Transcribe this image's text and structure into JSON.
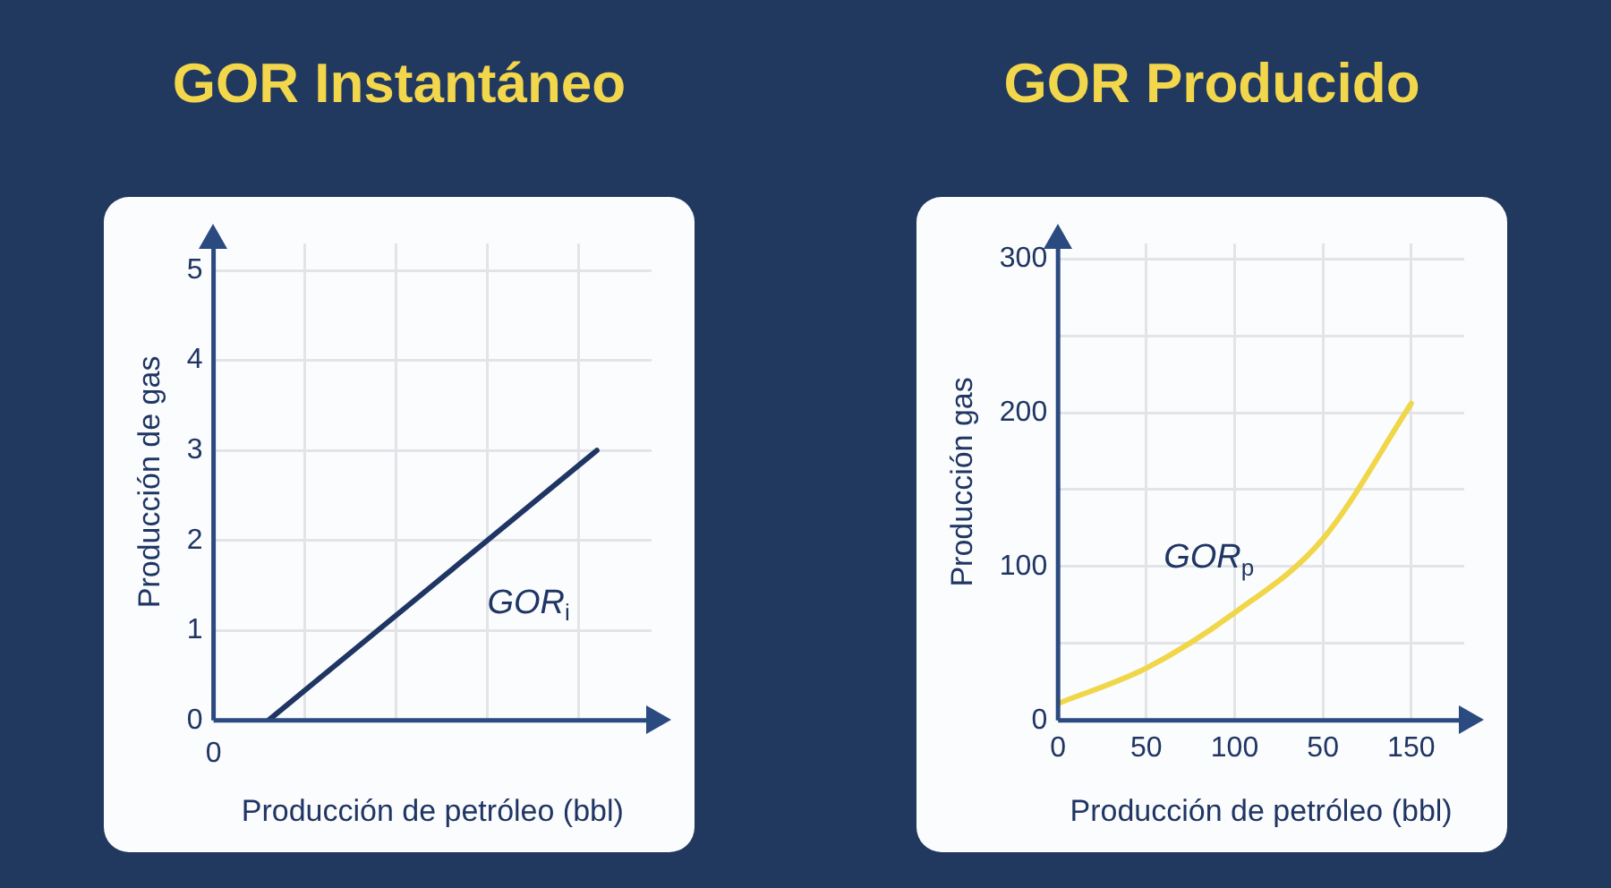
{
  "chart_data": [
    {
      "type": "line",
      "title": "GOR Instantáneo",
      "xlabel": "Producción de petróleo (bbl)",
      "ylabel": "Producción de gas",
      "categories": [
        null,
        null,
        null,
        null
      ],
      "series": [
        {
          "color": "#1f3563",
          "values": [
            0,
            1,
            2,
            3
          ]
        }
      ],
      "ylim": [
        0,
        5.3
      ],
      "yticks": [
        0,
        1,
        2,
        3,
        4,
        5
      ],
      "grid": true,
      "marker": "none",
      "line_style": "solid",
      "annotations": [
        "0",
        "GOR$_{i}$"
      ]
    },
    {
      "type": "line",
      "title": "GOR Producido",
      "xlabel": "Producción de petróleo (bbl)",
      "ylabel": "Producción gas",
      "categories": [
        "0",
        "50",
        "100",
        "50",
        "150"
      ],
      "series": [
        {
          "color": "#f0d648",
          "values": [
            11,
            34,
            70,
            118,
            206
          ]
        }
      ],
      "ylim": [
        0,
        310
      ],
      "yticks": [
        0,
        {
          "value": 50,
          "label": null
        },
        100,
        {
          "value": 150,
          "label": null
        },
        200,
        {
          "value": 250,
          "label": null
        },
        300
      ],
      "grid": true,
      "marker": "none",
      "line_style": "solid",
      "annotations": [
        "GOR$_{p}$"
      ]
    }
  ]
}
